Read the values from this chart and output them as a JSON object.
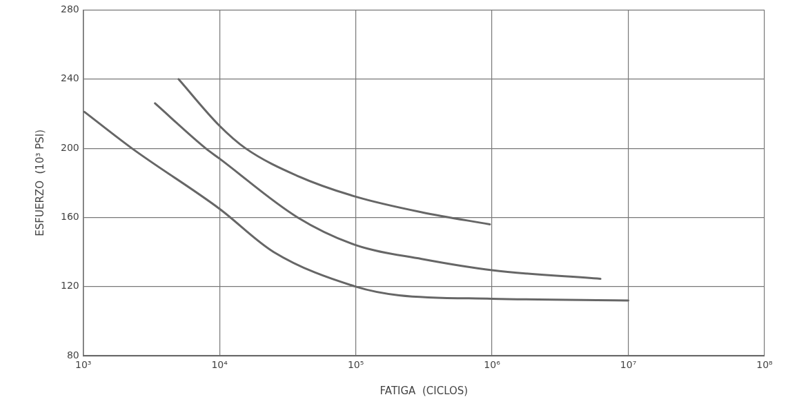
{
  "chart_data": {
    "type": "line",
    "xlabel": "FATIGA  (CICLOS)",
    "ylabel": "ESFUERZO  (10³ PSI)",
    "log": "x",
    "grid": true,
    "legend": false,
    "marker": "none",
    "line_style": "solid",
    "xlim": [
      1000,
      100000000
    ],
    "xticks": [
      {
        "value": 1000,
        "label": "10³"
      },
      {
        "value": 10000,
        "label": "10⁴"
      },
      {
        "value": 100000,
        "label": "10⁵"
      },
      {
        "value": 1000000,
        "label": "10⁶"
      },
      {
        "value": 10000000,
        "label": "10⁷"
      },
      {
        "value": 100000000,
        "label": "10⁸"
      }
    ],
    "ylim": [
      80,
      280
    ],
    "yticks": [
      80,
      120,
      160,
      200,
      240,
      280
    ],
    "series": [
      {
        "color": "#666666",
        "x": [
          1020,
          2270,
          10000,
          25000,
          100000,
          208000,
          1000000,
          10000000
        ],
        "values": [
          221,
          200,
          165,
          140,
          120,
          115,
          113,
          112
        ]
      },
      {
        "color": "#666666",
        "x": [
          3360,
          7900,
          10000,
          37400,
          100000,
          305000,
          1000000,
          6240000
        ],
        "values": [
          226,
          200,
          194,
          160,
          144,
          136,
          129.5,
          124.5
        ]
      },
      {
        "color": "#666666",
        "x": [
          5000,
          10000,
          15500,
          37400,
          100000,
          305000,
          964000
        ],
        "values": [
          240,
          213,
          200,
          184,
          172,
          163,
          156
        ]
      }
    ]
  }
}
